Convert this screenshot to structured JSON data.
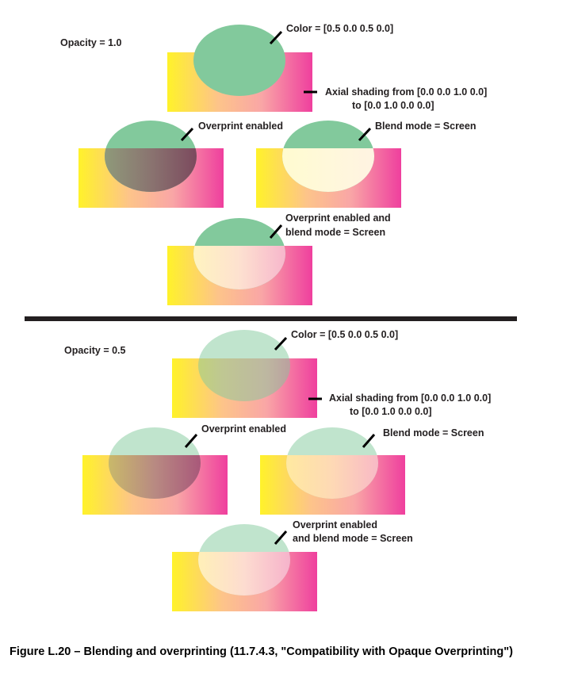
{
  "colors": {
    "fill_cmyk_green": "#82c99c",
    "shade_yellow": "#fff22a",
    "shade_magenta": "#ef3f9e",
    "overprint_dark": "#7a6a62",
    "screen_light": "#fffbd0",
    "divider": "#231f20"
  },
  "top": {
    "opacity_label": "Opacity = 1.0",
    "color_label": "Color = [0.5  0.0  0.5  0.0]",
    "axial_label_1": "Axial shading from [0.0  0.0  1.0  0.0]",
    "axial_label_2": "to [0.0  1.0  0.0  0.0]",
    "overprint_label": "Overprint enabled",
    "blend_label": "Blend mode = Screen",
    "both_label_1": "Overprint enabled and",
    "both_label_2": "blend mode = Screen"
  },
  "bottom": {
    "opacity_label": "Opacity = 0.5",
    "color_label": "Color = [0.5  0.0  0.5  0.0]",
    "axial_label_1": "Axial shading from [0.0  0.0  1.0  0.0]",
    "axial_label_2": "to [0.0  1.0  0.0  0.0]",
    "overprint_label": "Overprint enabled",
    "blend_label": "Blend mode = Screen",
    "both_label_1": "Overprint enabled",
    "both_label_2": "and blend mode = Screen"
  },
  "caption": "Figure L.20 –  Blending and overprinting (11.7.4.3, \"Compatibility with Opaque Overprinting\")"
}
